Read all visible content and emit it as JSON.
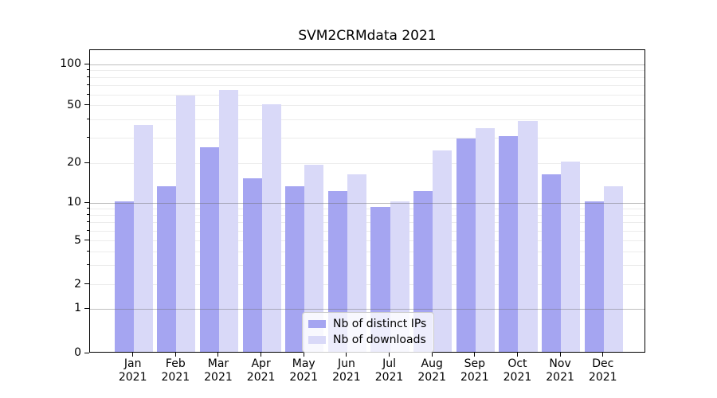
{
  "chart_data": {
    "type": "bar",
    "title": "SVM2CRMdata 2021",
    "year": "2021",
    "categories": [
      "Jan 2021",
      "Feb 2021",
      "Mar 2021",
      "Apr 2021",
      "May 2021",
      "Jun 2021",
      "Jul 2021",
      "Aug 2021",
      "Sep 2021",
      "Oct 2021",
      "Nov 2021",
      "Dec 2021"
    ],
    "series": [
      {
        "name": "Nb of distinct IPs",
        "color": "#a5a5f1",
        "values": [
          10,
          13,
          25,
          15,
          13,
          12,
          9,
          12,
          29,
          30,
          16,
          10
        ]
      },
      {
        "name": "Nb of downloads",
        "color": "#d9d9f8",
        "values": [
          36,
          58,
          63,
          50,
          19,
          16,
          10,
          24,
          34,
          38,
          20,
          13
        ]
      }
    ],
    "xlabel": "",
    "ylabel": "",
    "yscale": "symlog",
    "yticks": [
      0,
      1,
      2,
      5,
      10,
      20,
      50,
      100
    ],
    "ylim": [
      0,
      130
    ],
    "grid": "both",
    "legend_position": "lower center"
  }
}
